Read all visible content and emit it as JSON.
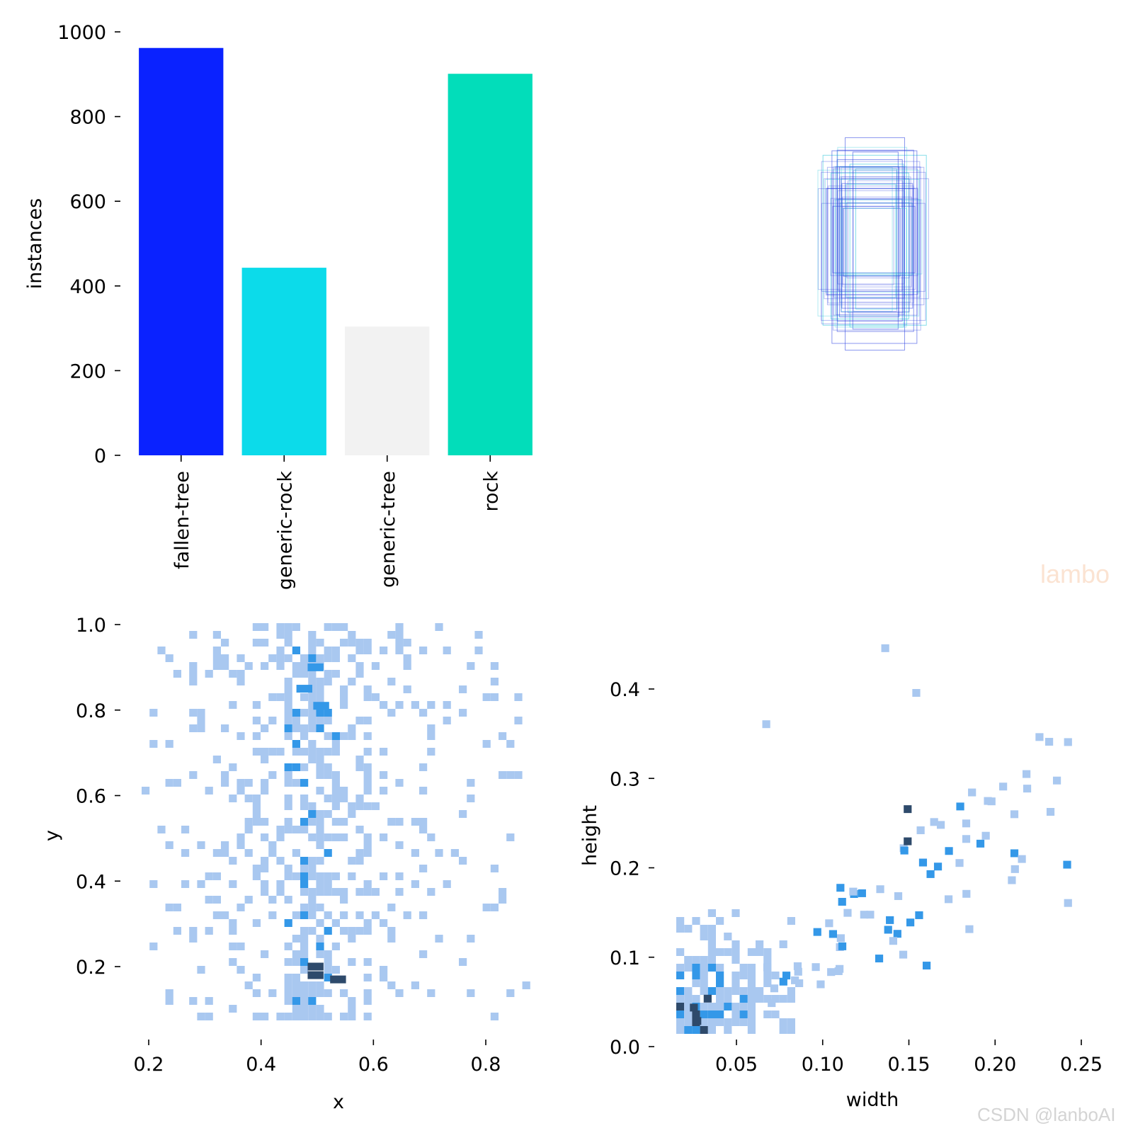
{
  "chart_data": [
    {
      "type": "bar",
      "ylabel": "instances",
      "categories": [
        "fallen-tree",
        "generic-rock",
        "generic-tree",
        "rock"
      ],
      "values": [
        962,
        443,
        304,
        901
      ],
      "colors": [
        "#0a22ff",
        "#0cdbea",
        "#f2f2f2",
        "#02ddba"
      ],
      "ylim": [
        0,
        1000
      ],
      "yticks": [
        "0",
        "200",
        "400",
        "600",
        "800",
        "1000"
      ]
    },
    {
      "type": "scatter",
      "title": "",
      "note": "label bounding boxes overlay",
      "series": [
        {
          "name": "boxes",
          "color": "#2a3fe0"
        },
        {
          "name": "boxes-cyan",
          "color": "#21c3d6"
        }
      ]
    },
    {
      "type": "heatmap",
      "xlabel": "x",
      "ylabel": "y",
      "xlim": [
        0.18,
        0.89
      ],
      "ylim": [
        0.03,
        1.0
      ],
      "xticks": [
        "0.2",
        "0.4",
        "0.6",
        "0.8"
      ],
      "yticks": [
        "0.2",
        "0.4",
        "0.6",
        "0.8",
        "1.0"
      ],
      "dense_columns_x": [
        0.47,
        0.49,
        0.51
      ],
      "hotspots": [
        [
          0.49,
          0.2
        ],
        [
          0.49,
          0.18
        ],
        [
          0.53,
          0.17
        ],
        [
          0.5,
          0.81
        ],
        [
          0.49,
          0.9
        ],
        [
          0.47,
          0.85
        ]
      ]
    },
    {
      "type": "heatmap",
      "xlabel": "width",
      "ylabel": "height",
      "xlim": [
        0.0,
        0.25
      ],
      "ylim": [
        0.0,
        0.46
      ],
      "xticks": [
        "0.05",
        "0.10",
        "0.15",
        "0.20",
        "0.25"
      ],
      "yticks": [
        "0.0",
        "0.1",
        "0.2",
        "0.3",
        "0.4"
      ],
      "hotspots": [
        [
          0.023,
          0.048
        ],
        [
          0.025,
          0.033
        ],
        [
          0.031,
          0.058
        ],
        [
          0.147,
          0.27
        ],
        [
          0.147,
          0.234
        ],
        [
          0.108,
          0.182
        ],
        [
          0.158,
          0.095
        ]
      ]
    }
  ],
  "watermarks": {
    "lambo": "lambo",
    "csdn": "CSDN @lanboAI"
  },
  "colors": {
    "light_cell": "#a9c8f0",
    "mid_cell": "#3498e8",
    "dark_cell": "#2e4a6b"
  }
}
